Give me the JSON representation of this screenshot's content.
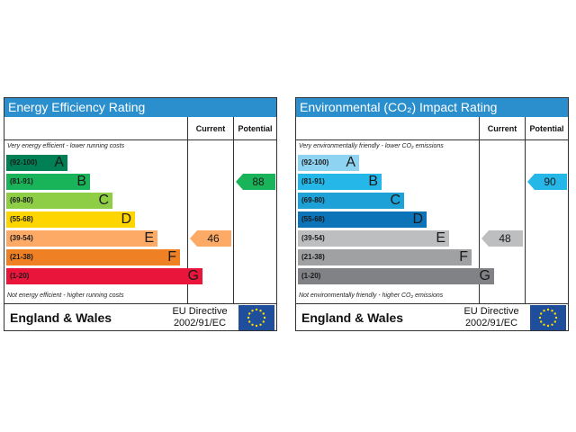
{
  "chart_data": [
    {
      "type": "bar",
      "title": "Energy Efficiency Rating",
      "column_headers": [
        "Current",
        "Potential"
      ],
      "note_top": "Very energy efficient - lower running costs",
      "note_bottom": "Not energy efficient - higher running costs",
      "bands": [
        {
          "range": "(92-100)",
          "letter": "A",
          "color": "#008054"
        },
        {
          "range": "(81-91)",
          "letter": "B",
          "color": "#19b459"
        },
        {
          "range": "(69-80)",
          "letter": "C",
          "color": "#8dce46"
        },
        {
          "range": "(55-68)",
          "letter": "D",
          "color": "#ffd500"
        },
        {
          "range": "(39-54)",
          "letter": "E",
          "color": "#fcaa65"
        },
        {
          "range": "(21-38)",
          "letter": "F",
          "color": "#ef8023"
        },
        {
          "range": "(1-20)",
          "letter": "G",
          "color": "#e9153b"
        }
      ],
      "current": {
        "value": "46",
        "band_index": 4,
        "color": "#fcaa65"
      },
      "potential": {
        "value": "88",
        "band_index": 1,
        "color": "#19b459"
      },
      "footer_country": "England & Wales",
      "footer_directive_line1": "EU Directive",
      "footer_directive_line2": "2002/91/EC"
    },
    {
      "type": "bar",
      "title": "Environmental (CO₂) Impact Rating",
      "column_headers": [
        "Current",
        "Potential"
      ],
      "note_top": "Very environmentally friendly - lower CO₂ emissions",
      "note_bottom": "Not environmentally friendly - higher CO₂ emissions",
      "bands": [
        {
          "range": "(92-100)",
          "letter": "A",
          "color": "#8fd3f2"
        },
        {
          "range": "(81-91)",
          "letter": "B",
          "color": "#25b7e8"
        },
        {
          "range": "(69-80)",
          "letter": "C",
          "color": "#1ea1d6"
        },
        {
          "range": "(55-68)",
          "letter": "D",
          "color": "#0b73b8"
        },
        {
          "range": "(39-54)",
          "letter": "E",
          "color": "#bcbec0"
        },
        {
          "range": "(21-38)",
          "letter": "F",
          "color": "#9fa1a3"
        },
        {
          "range": "(1-20)",
          "letter": "G",
          "color": "#808285"
        }
      ],
      "current": {
        "value": "48",
        "band_index": 4,
        "color": "#bcbec0"
      },
      "potential": {
        "value": "90",
        "band_index": 1,
        "color": "#25b7e8"
      },
      "footer_country": "England & Wales",
      "footer_directive_line1": "EU Directive",
      "footer_directive_line2": "2002/91/EC"
    }
  ]
}
